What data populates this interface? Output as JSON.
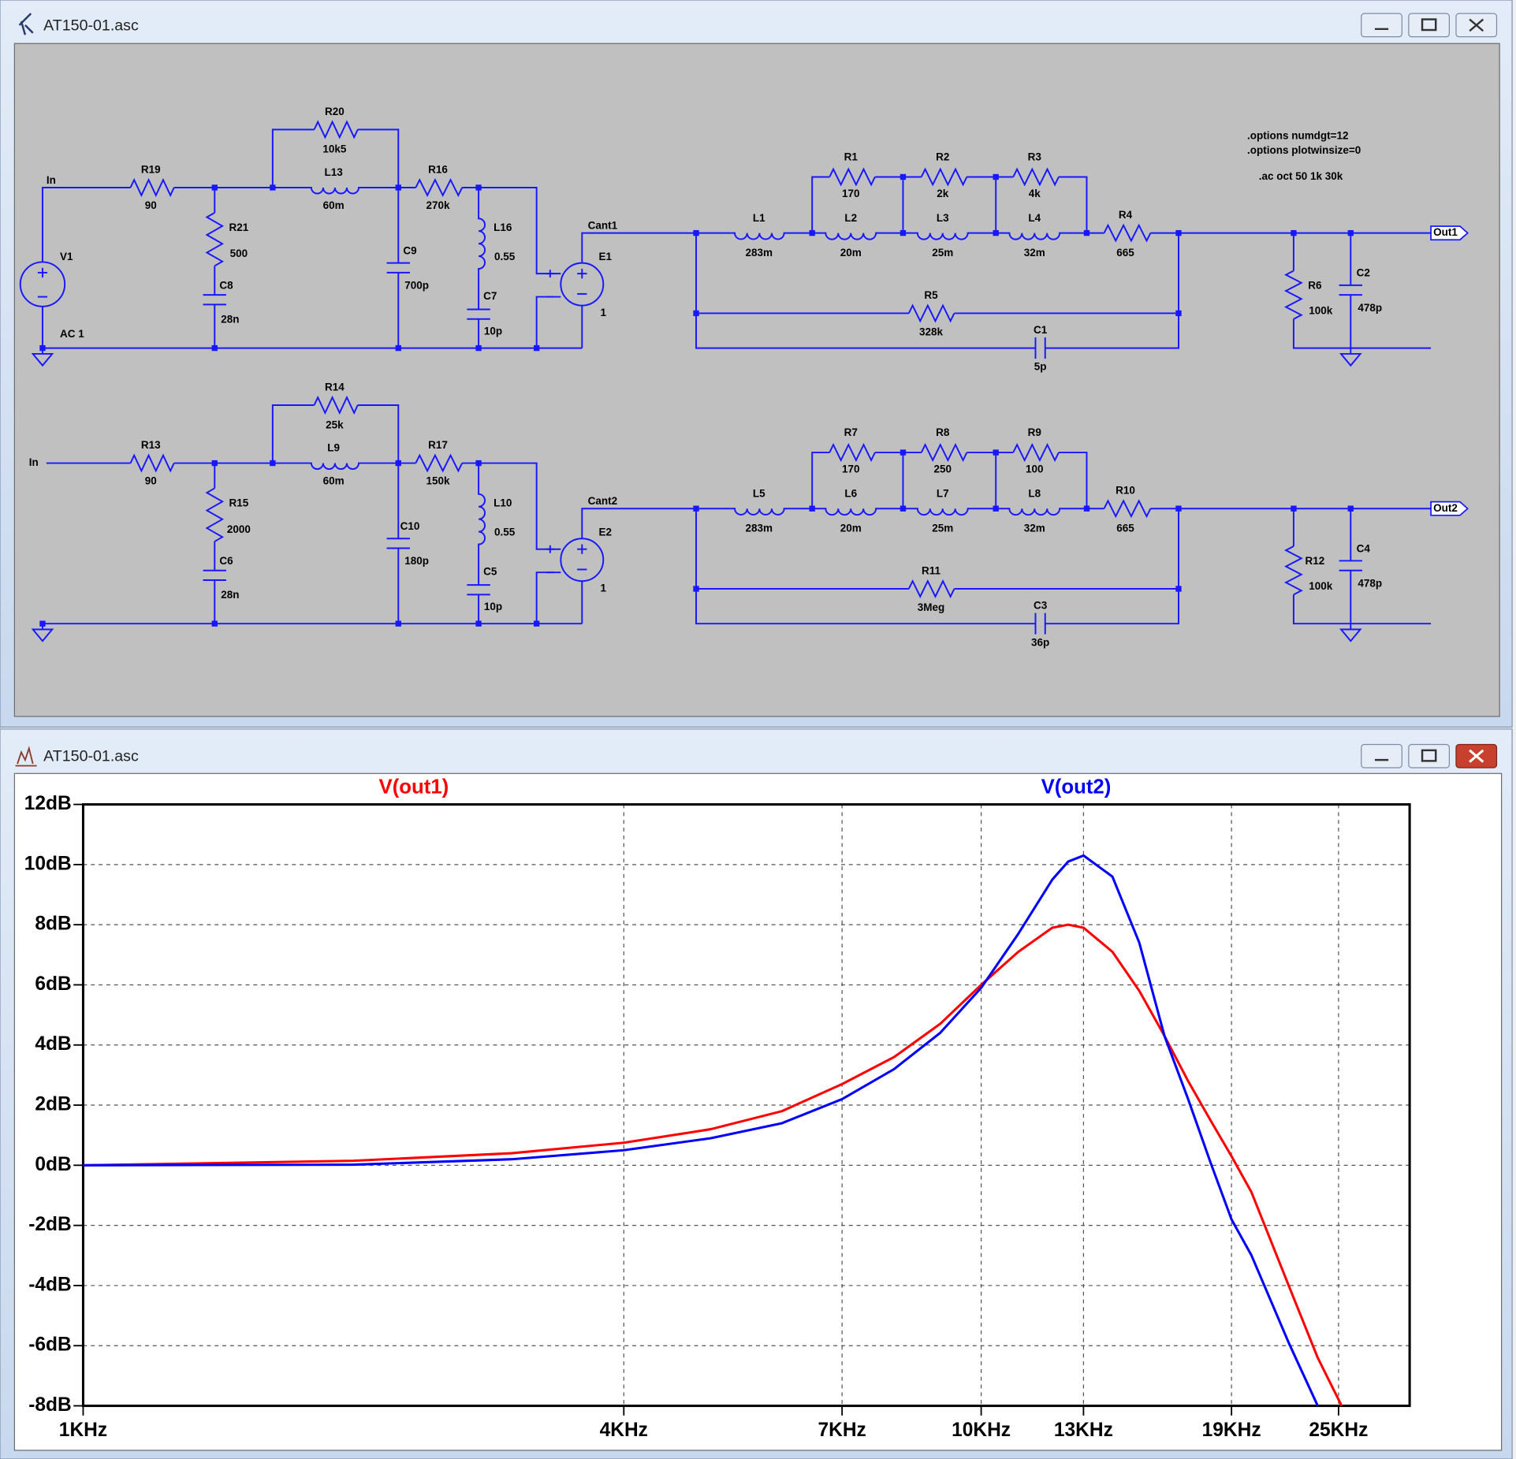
{
  "schematic_window": {
    "title": "AT150-01.asc",
    "directives": [
      ".options numdgt=12",
      ".options plotwinsize=0",
      ".ac oct 50 1k 30k"
    ],
    "rows": [
      {
        "input": "In",
        "source": {
          "name": "V1",
          "value": "AC 1"
        },
        "net": "Cant1",
        "output": "Out1",
        "components": [
          {
            "name": "R19",
            "value": "90"
          },
          {
            "name": "R21",
            "value": "500"
          },
          {
            "name": "C8",
            "value": "28n"
          },
          {
            "name": "R20",
            "value": "10k5"
          },
          {
            "name": "L13",
            "value": "60m"
          },
          {
            "name": "R16",
            "value": "270k"
          },
          {
            "name": "C9",
            "value": "700p"
          },
          {
            "name": "L16",
            "value": "0.55"
          },
          {
            "name": "C7",
            "value": "10p"
          },
          {
            "name": "E1",
            "value": "1"
          },
          {
            "name": "L1",
            "value": "283m"
          },
          {
            "name": "R1",
            "value": "170"
          },
          {
            "name": "R2",
            "value": "2k"
          },
          {
            "name": "R3",
            "value": "4k"
          },
          {
            "name": "L2",
            "value": "20m"
          },
          {
            "name": "L3",
            "value": "25m"
          },
          {
            "name": "L4",
            "value": "32m"
          },
          {
            "name": "R4",
            "value": "665"
          },
          {
            "name": "R5",
            "value": "328k"
          },
          {
            "name": "C1",
            "value": "5p"
          },
          {
            "name": "R6",
            "value": "100k"
          },
          {
            "name": "C2",
            "value": "478p"
          }
        ]
      },
      {
        "input": "In",
        "net": "Cant2",
        "output": "Out2",
        "components": [
          {
            "name": "R13",
            "value": "90"
          },
          {
            "name": "R15",
            "value": "2000"
          },
          {
            "name": "C6",
            "value": "28n"
          },
          {
            "name": "R14",
            "value": "25k"
          },
          {
            "name": "L9",
            "value": "60m"
          },
          {
            "name": "R17",
            "value": "150k"
          },
          {
            "name": "C10",
            "value": "180p"
          },
          {
            "name": "L10",
            "value": "0.55"
          },
          {
            "name": "C5",
            "value": "10p"
          },
          {
            "name": "E2",
            "value": "1"
          },
          {
            "name": "L5",
            "value": "283m"
          },
          {
            "name": "R7",
            "value": "170"
          },
          {
            "name": "R8",
            "value": "250"
          },
          {
            "name": "R9",
            "value": "100"
          },
          {
            "name": "L6",
            "value": "20m"
          },
          {
            "name": "L7",
            "value": "25m"
          },
          {
            "name": "L8",
            "value": "32m"
          },
          {
            "name": "R10",
            "value": "665"
          },
          {
            "name": "R11",
            "value": "3Meg"
          },
          {
            "name": "C3",
            "value": "36p"
          },
          {
            "name": "R12",
            "value": "100k"
          },
          {
            "name": "C4",
            "value": "478p"
          }
        ]
      }
    ]
  },
  "plot_window": {
    "title": "AT150-01.asc"
  },
  "chart_data": {
    "type": "line",
    "xscale": "log",
    "grid": true,
    "x": [
      1000,
      2000,
      3000,
      4000,
      5000,
      6000,
      7000,
      8000,
      9000,
      10000,
      11000,
      12000,
      12500,
      13000,
      14000,
      15000,
      16000,
      17000,
      18000,
      19000,
      20000,
      22000,
      23700,
      25200
    ],
    "series": [
      {
        "name": "V(out1)",
        "color": "#ff0000",
        "values": [
          0,
          0.15,
          0.4,
          0.75,
          1.2,
          1.8,
          2.7,
          3.6,
          4.7,
          6.0,
          7.1,
          7.9,
          8.0,
          7.9,
          7.1,
          5.8,
          4.3,
          2.8,
          1.5,
          0.3,
          -0.9,
          -4.0,
          -6.4,
          -8.0
        ]
      },
      {
        "name": "V(out2)",
        "color": "#0000ff",
        "values": [
          0,
          0.02,
          0.2,
          0.5,
          0.9,
          1.4,
          2.2,
          3.2,
          4.4,
          5.9,
          7.7,
          9.5,
          10.1,
          10.3,
          9.6,
          7.4,
          4.3,
          2.2,
          0.1,
          -1.8,
          -3.0,
          -5.9,
          -8.0,
          null
        ]
      }
    ],
    "xlim": [
      1000,
      30000
    ],
    "ylim": [
      -8,
      12
    ],
    "xticks": [
      {
        "value": 1000,
        "label": "1KHz"
      },
      {
        "value": 4000,
        "label": "4KHz"
      },
      {
        "value": 7000,
        "label": "7KHz"
      },
      {
        "value": 10000,
        "label": "10KHz"
      },
      {
        "value": 13000,
        "label": "13KHz"
      },
      {
        "value": 19000,
        "label": "19KHz"
      },
      {
        "value": 25000,
        "label": "25KHz"
      }
    ],
    "yticks": [
      {
        "value": -8,
        "label": "-8dB"
      },
      {
        "value": -6,
        "label": "-6dB"
      },
      {
        "value": -4,
        "label": "-4dB"
      },
      {
        "value": -2,
        "label": "-2dB"
      },
      {
        "value": 0,
        "label": "0dB"
      },
      {
        "value": 2,
        "label": "2dB"
      },
      {
        "value": 4,
        "label": "4dB"
      },
      {
        "value": 6,
        "label": "6dB"
      },
      {
        "value": 8,
        "label": "8dB"
      },
      {
        "value": 10,
        "label": "10dB"
      },
      {
        "value": 12,
        "label": "12dB"
      }
    ]
  }
}
